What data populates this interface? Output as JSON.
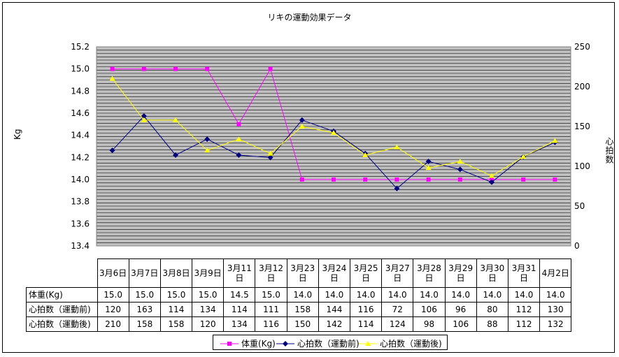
{
  "chart_data": {
    "type": "line",
    "title": "リキの運動効果データ",
    "ylabel_left": "Kg",
    "ylabel_right": "心拍数",
    "ylim_left": [
      13.4,
      15.2
    ],
    "ylim_right": [
      0,
      250
    ],
    "yticks_left": [
      "15.2",
      "15.0",
      "14.8",
      "14.6",
      "14.4",
      "14.2",
      "14.0",
      "13.8",
      "13.6",
      "13.4"
    ],
    "yticks_right": [
      "250",
      "200",
      "150",
      "100",
      "50",
      "0"
    ],
    "categories": [
      "3月6日",
      "3月7日",
      "3月8日",
      "3月9日",
      "3月11日",
      "3月12日",
      "3月23日",
      "3月24日",
      "3月25日",
      "3月27日",
      "3月28日",
      "3月29日",
      "3月30日",
      "3月31日",
      "4月2日"
    ],
    "series": [
      {
        "name": "体重(Kg)",
        "axis": "left",
        "color": "#FF00FF",
        "marker": "square",
        "values": [
          15.0,
          15.0,
          15.0,
          15.0,
          14.5,
          15.0,
          14.0,
          14.0,
          14.0,
          14.0,
          14.0,
          14.0,
          14.0,
          14.0,
          14.0
        ]
      },
      {
        "name": "心拍数（運動前)",
        "axis": "right",
        "color": "#000080",
        "marker": "diamond",
        "values": [
          120,
          163,
          114,
          134,
          114,
          111,
          158,
          144,
          116,
          72,
          106,
          96,
          80,
          112,
          130
        ]
      },
      {
        "name": "心拍数（運動後)",
        "axis": "right",
        "color": "#FFFF00",
        "marker": "triangle",
        "values": [
          210,
          158,
          158,
          120,
          134,
          116,
          150,
          142,
          114,
          124,
          98,
          106,
          88,
          112,
          132
        ]
      }
    ],
    "table_rows": [
      {
        "label": "体重(Kg)",
        "cells": [
          "15.0",
          "15.0",
          "15.0",
          "15.0",
          "14.5",
          "15.0",
          "14.0",
          "14.0",
          "14.0",
          "14.0",
          "14.0",
          "14.0",
          "14.0",
          "14.0",
          "14.0"
        ]
      },
      {
        "label": "心拍数（運動前)",
        "cells": [
          "120",
          "163",
          "114",
          "134",
          "114",
          "111",
          "158",
          "144",
          "116",
          "72",
          "106",
          "96",
          "80",
          "112",
          "130"
        ]
      },
      {
        "label": "心拍数（運動後)",
        "cells": [
          "210",
          "158",
          "158",
          "120",
          "134",
          "116",
          "150",
          "142",
          "114",
          "124",
          "98",
          "106",
          "88",
          "112",
          "132"
        ]
      }
    ],
    "grid": true,
    "legend_position": "bottom",
    "plot_background": "#C0C0C0"
  }
}
